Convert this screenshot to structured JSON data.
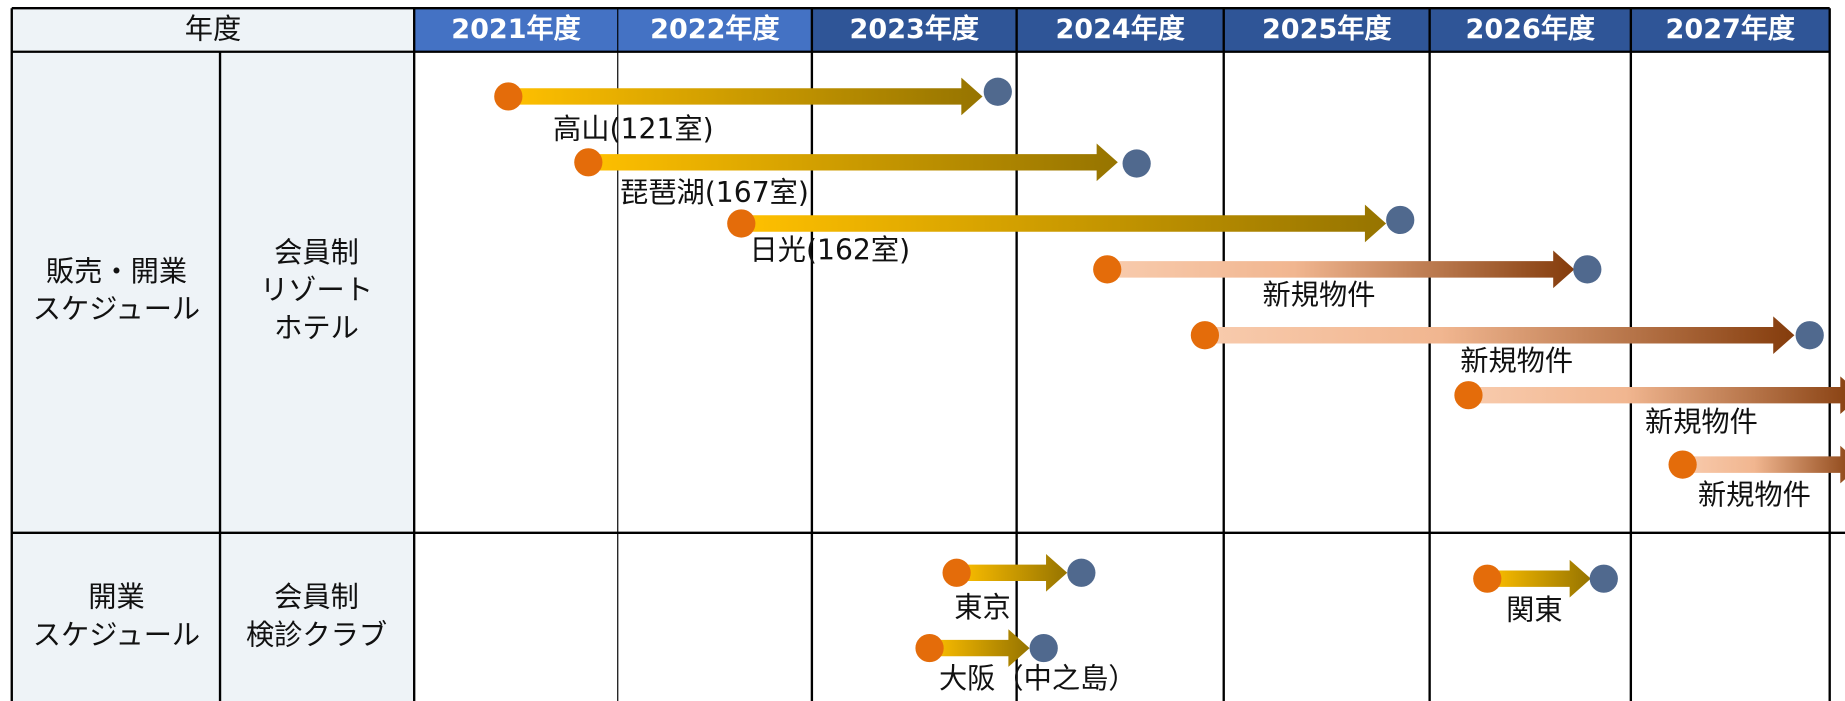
{
  "header": {
    "label": "年度",
    "years": [
      "2021年度",
      "2022年度",
      "2023年度",
      "2024年度",
      "2025年度",
      "2026年度",
      "2027年度"
    ]
  },
  "rows": [
    {
      "category": [
        "販売・開業",
        "スケジュール"
      ],
      "type": [
        "会員制",
        "リゾート",
        "ホテル"
      ],
      "items": [
        {
          "label": "高山(121室)"
        },
        {
          "label": "琵琶湖(167室)"
        },
        {
          "label": "日光(162室)"
        },
        {
          "label": "新規物件"
        },
        {
          "label": "新規物件"
        },
        {
          "label": "新規物件"
        },
        {
          "label": "新規物件"
        }
      ]
    },
    {
      "category": [
        "開業",
        "スケジュール"
      ],
      "type": [
        "会員制",
        "検診クラブ"
      ],
      "items": [
        {
          "label": "東京"
        },
        {
          "label": "関東"
        },
        {
          "label": "大阪（中之島）"
        }
      ]
    }
  ]
}
